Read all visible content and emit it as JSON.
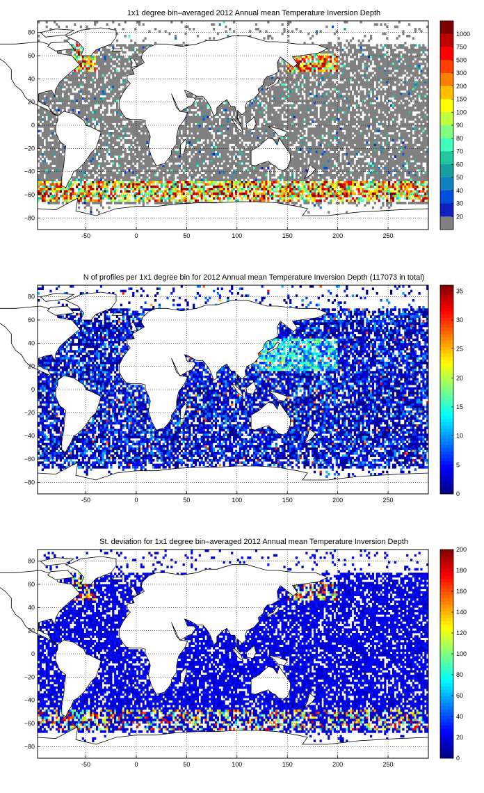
{
  "colors": {
    "land": "#ffffff",
    "coast": "#000000",
    "nodata_gray": "#808080",
    "grid": "#000000"
  },
  "map_extent": {
    "lon": [
      -98,
      290
    ],
    "lat": [
      -90,
      90
    ]
  },
  "panels": [
    {
      "id": "mean",
      "title": "1x1 degree bin–averaged 2012 Annual mean Temperature Inversion Depth",
      "xticks": [
        "-50",
        "0",
        "50",
        "100",
        "150",
        "200",
        "250"
      ],
      "yticks": [
        "80",
        "60",
        "40",
        "20",
        "0",
        "−20",
        "−40",
        "−60",
        "−80"
      ],
      "colorbar": {
        "type": "discrete",
        "labels": [
          "1000",
          "750",
          "500",
          "300",
          "200",
          "150",
          "100",
          "90",
          "80",
          "70",
          "60",
          "50",
          "40",
          "30",
          "20"
        ],
        "colors": [
          "#7f0000",
          "#bf0000",
          "#ff0000",
          "#ff4000",
          "#ff8000",
          "#ffbf00",
          "#ffff00",
          "#bfff40",
          "#80ff80",
          "#40ffbf",
          "#20c8a0",
          "#18a0a0",
          "#1080c0",
          "#0050e0",
          "#1020c0",
          "#808080"
        ]
      }
    },
    {
      "id": "count",
      "title": "N of profiles per 1x1 degree bin for 2012 Annual mean Temperature Inversion Depth  (117073 in total)",
      "xticks": [
        "-50",
        "0",
        "50",
        "100",
        "150",
        "200",
        "250"
      ],
      "yticks": [
        "80",
        "60",
        "40",
        "20",
        "0",
        "−20",
        "−40",
        "−60",
        "−80"
      ],
      "colorbar": {
        "type": "continuous",
        "min": 0,
        "max": 36,
        "labels": [
          "35",
          "30",
          "25",
          "20",
          "15",
          "10",
          "5",
          "0"
        ],
        "label_values": [
          35,
          30,
          25,
          20,
          15,
          10,
          5,
          0
        ]
      }
    },
    {
      "id": "std",
      "title": "St. deviation for 1x1 degree bin–averaged 2012 Annual mean Temperature Inversion Depth",
      "xticks": [
        "-50",
        "0",
        "50",
        "100",
        "150",
        "200",
        "250"
      ],
      "yticks": [
        "80",
        "60",
        "40",
        "20",
        "0",
        "−20",
        "−40",
        "−60",
        "−80"
      ],
      "colorbar": {
        "type": "continuous",
        "min": 0,
        "max": 200,
        "labels": [
          "200",
          "180",
          "160",
          "140",
          "120",
          "100",
          "80",
          "60",
          "40",
          "20",
          "0"
        ],
        "label_values": [
          200,
          180,
          160,
          140,
          120,
          100,
          80,
          60,
          40,
          20,
          0
        ]
      }
    }
  ]
}
